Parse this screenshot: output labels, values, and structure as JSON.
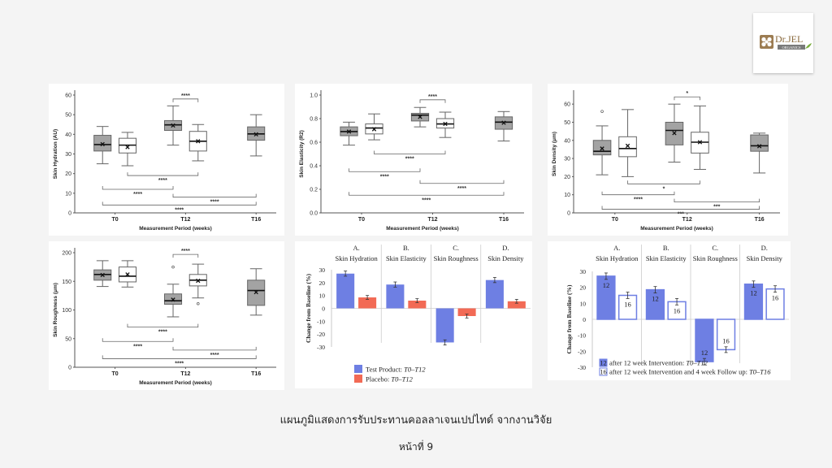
{
  "logo": {
    "brand": "Dr.JEL",
    "subtitle": "ORGANICS",
    "icon": "flower-logo-icon"
  },
  "caption": {
    "title": "แผนภูมิแสดงการรับประทานคอลลาเจนเปปไทด์ จากงานวิจัย",
    "page": "หน้าที่ 9"
  },
  "colors": {
    "box_test": "#a3a3a3",
    "box_placebo": "#ffffff",
    "bar_test": "#6e7fe3",
    "bar_placebo": "#f26a55",
    "bar_t16_outline": "#6e7fe3"
  },
  "chart_data": [
    {
      "id": "p1",
      "type": "box",
      "ylabel": "Skin Hydration (AU)",
      "xlabel": "Measurement Period  (weeks)",
      "categories": [
        "T0",
        "T12",
        "T16"
      ],
      "ylim": [
        0,
        60
      ],
      "yticks": [
        0,
        10,
        20,
        30,
        40,
        50,
        60
      ],
      "boxes": [
        {
          "group": "T0",
          "series": "test",
          "min": 25,
          "q1": 31.5,
          "median": 34.8,
          "q3": 39.5,
          "max": 44,
          "mean": 35,
          "outliers": []
        },
        {
          "group": "T0",
          "series": "placebo",
          "min": 24,
          "q1": 30.5,
          "median": 34.5,
          "q3": 38,
          "max": 41,
          "mean": 33.5,
          "outliers": []
        },
        {
          "group": "T12",
          "series": "test",
          "min": 34.5,
          "q1": 42,
          "median": 44.8,
          "q3": 47,
          "max": 54.5,
          "mean": 44.5,
          "outliers": []
        },
        {
          "group": "T12",
          "series": "placebo",
          "min": 26.5,
          "q1": 31.5,
          "median": 36.5,
          "q3": 41.5,
          "max": 45,
          "mean": 36.5,
          "outliers": []
        },
        {
          "group": "T16",
          "series": "test",
          "min": 29,
          "q1": 37,
          "median": 40.2,
          "q3": 43.8,
          "max": 50,
          "mean": 40,
          "outliers": []
        }
      ],
      "significance": [
        {
          "from": "T12-test",
          "to": "T12-placebo",
          "label": "****",
          "y": 58,
          "dir": "up"
        },
        {
          "from": "T0-placebo",
          "to": "T12-placebo",
          "label": "****",
          "y": 19,
          "dir": "down"
        },
        {
          "from": "T0-test",
          "to": "T12-test",
          "label": "****",
          "y": 12,
          "dir": "down"
        },
        {
          "from": "T12-test",
          "to": "T16-test",
          "label": "****",
          "y": 8,
          "dir": "down"
        },
        {
          "from": "T0-test",
          "to": "T16-test",
          "label": "****",
          "y": 4,
          "dir": "down"
        }
      ]
    },
    {
      "id": "p2",
      "type": "box",
      "ylabel": "Skin Elasticity (R2)",
      "xlabel": "Measurement Period  (weeks)",
      "categories": [
        "T0",
        "T12",
        "T16"
      ],
      "ylim": [
        0,
        1.0
      ],
      "yticks": [
        0.0,
        0.2,
        0.4,
        0.6,
        0.8,
        1.0
      ],
      "boxes": [
        {
          "group": "T0",
          "series": "test",
          "min": 0.575,
          "q1": 0.655,
          "median": 0.69,
          "q3": 0.73,
          "max": 0.77,
          "mean": 0.69,
          "outliers": []
        },
        {
          "group": "T0",
          "series": "placebo",
          "min": 0.62,
          "q1": 0.67,
          "median": 0.72,
          "q3": 0.755,
          "max": 0.84,
          "mean": 0.71,
          "outliers": []
        },
        {
          "group": "T12",
          "series": "test",
          "min": 0.73,
          "q1": 0.78,
          "median": 0.83,
          "q3": 0.845,
          "max": 0.895,
          "mean": 0.815,
          "outliers": []
        },
        {
          "group": "T12",
          "series": "placebo",
          "min": 0.64,
          "q1": 0.72,
          "median": 0.755,
          "q3": 0.8,
          "max": 0.855,
          "mean": 0.755,
          "outliers": []
        },
        {
          "group": "T16",
          "series": "test",
          "min": 0.61,
          "q1": 0.71,
          "median": 0.77,
          "q3": 0.815,
          "max": 0.86,
          "mean": 0.765,
          "outliers": []
        }
      ],
      "significance": [
        {
          "from": "T12-test",
          "to": "T12-placebo",
          "label": "****",
          "y": 0.96,
          "dir": "up"
        },
        {
          "from": "T0-placebo",
          "to": "T12-placebo",
          "label": "****",
          "y": 0.5,
          "dir": "down"
        },
        {
          "from": "T0-test",
          "to": "T12-test",
          "label": "****",
          "y": 0.35,
          "dir": "down"
        },
        {
          "from": "T12-test",
          "to": "T16-test",
          "label": "****",
          "y": 0.25,
          "dir": "down"
        },
        {
          "from": "T0-test",
          "to": "T16-test",
          "label": "****",
          "y": 0.15,
          "dir": "down"
        }
      ]
    },
    {
      "id": "p3",
      "type": "box",
      "ylabel": "Skin Density (μm)",
      "xlabel": "Measurement Period  (weeks)",
      "categories": [
        "T0",
        "T12",
        "T16"
      ],
      "ylim": [
        0,
        65
      ],
      "yticks": [
        0,
        10,
        20,
        30,
        40,
        50,
        60
      ],
      "boxes": [
        {
          "group": "T0",
          "series": "test",
          "min": 21,
          "q1": 32,
          "median": 34,
          "q3": 40,
          "max": 48,
          "mean": 35.5,
          "outliers": [
            56
          ]
        },
        {
          "group": "T0",
          "series": "placebo",
          "min": 20,
          "q1": 31,
          "median": 35.5,
          "q3": 42,
          "max": 57,
          "mean": 37,
          "outliers": []
        },
        {
          "group": "T12",
          "series": "test",
          "min": 28,
          "q1": 37.5,
          "median": 45.5,
          "q3": 50,
          "max": 60,
          "mean": 44,
          "outliers": []
        },
        {
          "group": "T12",
          "series": "placebo",
          "min": 24,
          "q1": 33,
          "median": 39,
          "q3": 44.5,
          "max": 59,
          "mean": 39,
          "outliers": []
        },
        {
          "group": "T16",
          "series": "test",
          "min": 22,
          "q1": 34,
          "median": 37,
          "q3": 43,
          "max": 44,
          "mean": 36.8,
          "outliers": []
        }
      ],
      "significance": [
        {
          "from": "T12-test",
          "to": "T12-placebo",
          "label": "*",
          "y": 64,
          "dir": "up"
        },
        {
          "from": "T0-placebo",
          "to": "T12-placebo",
          "label": "*",
          "y": 16,
          "dir": "down"
        },
        {
          "from": "T0-test",
          "to": "T12-test",
          "label": "****",
          "y": 10,
          "dir": "down"
        },
        {
          "from": "T12-test",
          "to": "T16-test",
          "label": "***",
          "y": 6,
          "dir": "down"
        },
        {
          "from": "T0-test",
          "to": "T16-test",
          "label": "***",
          "y": 2,
          "dir": "down"
        }
      ]
    },
    {
      "id": "p4",
      "type": "box",
      "ylabel": "Skin Roughness (μm)",
      "xlabel": "Measurement Period  (weeks)",
      "categories": [
        "T0",
        "T12",
        "T16"
      ],
      "ylim": [
        0,
        200
      ],
      "yticks": [
        0,
        50,
        100,
        150,
        200
      ],
      "boxes": [
        {
          "group": "T0",
          "series": "test",
          "min": 141,
          "q1": 152,
          "median": 162,
          "q3": 170,
          "max": 186,
          "mean": 161,
          "outliers": []
        },
        {
          "group": "T0",
          "series": "placebo",
          "min": 140,
          "q1": 149,
          "median": 159,
          "q3": 175,
          "max": 186,
          "mean": 162,
          "outliers": []
        },
        {
          "group": "T12",
          "series": "test",
          "min": 88,
          "q1": 110,
          "median": 116,
          "q3": 128,
          "max": 145,
          "mean": 118,
          "outliers": [
            175
          ]
        },
        {
          "group": "T12",
          "series": "placebo",
          "min": 121,
          "q1": 142,
          "median": 152,
          "q3": 162,
          "max": 180,
          "mean": 151,
          "outliers": [
            111
          ]
        },
        {
          "group": "T16",
          "series": "test",
          "min": 91,
          "q1": 108,
          "median": 134,
          "q3": 152,
          "max": 172,
          "mean": 131,
          "outliers": []
        }
      ],
      "significance": [
        {
          "from": "T12-test",
          "to": "T12-placebo",
          "label": "****",
          "y": 197,
          "dir": "up"
        },
        {
          "from": "T0-placebo",
          "to": "T12-placebo",
          "label": "****",
          "y": 70,
          "dir": "down"
        },
        {
          "from": "T0-test",
          "to": "T12-test",
          "label": "****",
          "y": 45,
          "dir": "down"
        },
        {
          "from": "T12-test",
          "to": "T16-test",
          "label": "****",
          "y": 30,
          "dir": "down"
        },
        {
          "from": "T0-test",
          "to": "T16-test",
          "label": "****",
          "y": 15,
          "dir": "down"
        }
      ]
    },
    {
      "id": "p5",
      "type": "bar",
      "ylabel": "Change from Baseline (%)",
      "ylim": [
        -30,
        30
      ],
      "yticks": [
        30,
        20,
        10,
        0,
        -10,
        -20,
        -30
      ],
      "categories": [
        {
          "letter": "A.",
          "name": "Skin Hydration"
        },
        {
          "letter": "B.",
          "name": "Skin Elasticity"
        },
        {
          "letter": "C.",
          "name": "Skin Roughness"
        },
        {
          "letter": "D.",
          "name": "Skin Density"
        }
      ],
      "series": [
        {
          "name": "Test Product",
          "period": "T0–T12",
          "color_key": "bar_test",
          "values": [
            27,
            18.5,
            -26.5,
            22
          ],
          "errors": [
            2,
            2,
            2,
            2
          ]
        },
        {
          "name": "Placebo",
          "period": "T0–T12",
          "color_key": "bar_placebo",
          "values": [
            8.5,
            6,
            -6,
            5.5
          ],
          "errors": [
            1.5,
            1.5,
            1.5,
            1.5
          ]
        }
      ],
      "legend": [
        {
          "label": "Test Product: ",
          "period": "T0–T12"
        },
        {
          "label": "Placebo: ",
          "period": "T0–T12"
        }
      ]
    },
    {
      "id": "p6",
      "type": "bar",
      "ylabel": "Change from Baseline (%)",
      "ylim": [
        -30,
        30
      ],
      "yticks": [
        30,
        20,
        10,
        0,
        -10,
        -20,
        -30
      ],
      "categories": [
        {
          "letter": "A.",
          "name": "Skin Hydration"
        },
        {
          "letter": "B.",
          "name": "Skin Elasticity"
        },
        {
          "letter": "C.",
          "name": "Skin Roughness"
        },
        {
          "letter": "D.",
          "name": "Skin Density"
        }
      ],
      "series": [
        {
          "name": "after 12 week Intervention",
          "tag": "12",
          "period": "T0–T12",
          "values": [
            27,
            18.5,
            -26.5,
            22
          ],
          "errors": [
            2,
            2,
            2,
            2
          ]
        },
        {
          "name": "after 12 week Intervention and 4 week Follow up",
          "tag": "16",
          "period": "T0–T16",
          "values": [
            15,
            11,
            -19,
            19
          ],
          "errors": [
            2,
            2,
            1.8,
            2
          ]
        }
      ],
      "legend": [
        {
          "tag": "12",
          "label": "after 12 week Intervention: ",
          "period": "T0–T12"
        },
        {
          "tag": "16",
          "label": "after 12 week Intervention and 4 week Follow up: ",
          "period": "T0–T16"
        }
      ]
    }
  ]
}
